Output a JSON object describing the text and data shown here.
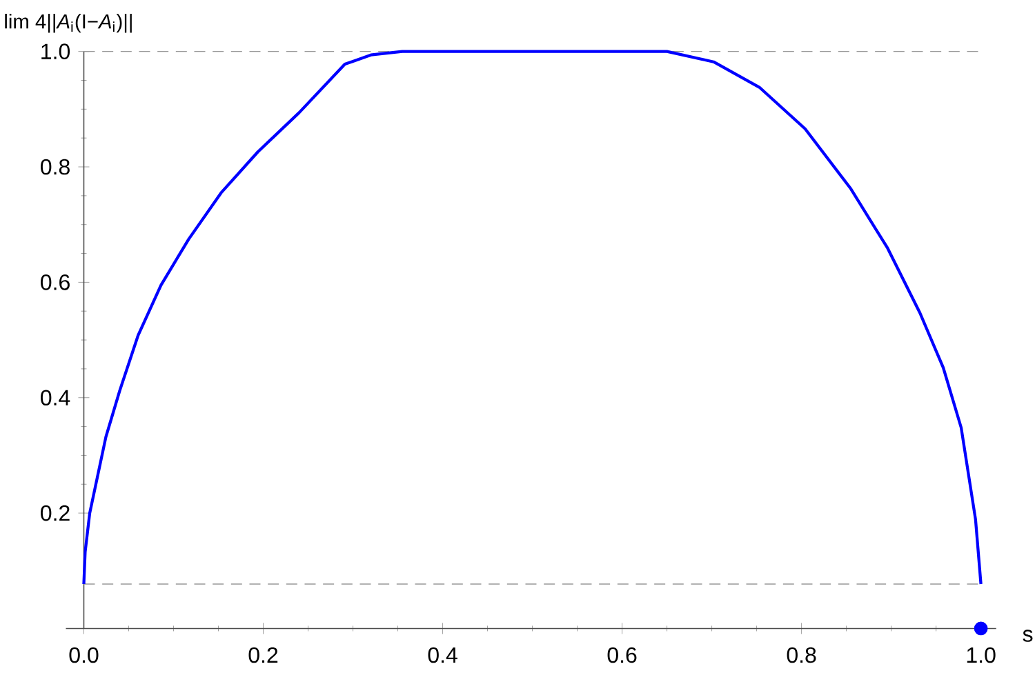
{
  "chart_data": {
    "type": "line",
    "xlabel": "s",
    "ylabel": "lim 4||*A*$_{i}$(I−*A*$_{i}$)||",
    "xlim": [
      -0.02,
      1.017
    ],
    "ylim": [
      0,
      1
    ],
    "xticks": [
      {
        "value": 0,
        "label": "0.0"
      },
      0.2,
      0.4,
      0.6,
      0.8,
      {
        "value": 1,
        "label": "1.0"
      }
    ],
    "yticks": [
      0.2,
      0.4,
      0.6,
      0.8,
      {
        "value": 1,
        "label": "1.0"
      }
    ],
    "ref_lines": [
      {
        "axis": "y",
        "value": 1,
        "color": "#999999",
        "line_style": "dashed"
      },
      {
        "axis": "y",
        "value": 0.077,
        "color": "#999999",
        "line_style": "dashed"
      }
    ],
    "series": [
      {
        "color": "#0000ff",
        "marker": "none",
        "x": [
          0,
          0.0015,
          0.0066,
          0.0246,
          0.04,
          0.0605,
          0.086,
          0.117,
          0.153,
          0.194,
          0.24,
          0.291,
          0.32,
          0.355,
          0.5,
          0.65,
          0.702,
          0.753,
          0.804,
          0.855,
          0.896,
          0.932,
          0.958,
          0.978,
          0.994,
          1
        ],
        "values": [
          0.077,
          0.133,
          0.2,
          0.332,
          0.412,
          0.508,
          0.595,
          0.675,
          0.755,
          0.826,
          0.894,
          0.978,
          0.994,
          1,
          1,
          1,
          0.982,
          0.938,
          0.866,
          0.762,
          0.659,
          0.547,
          0.452,
          0.348,
          0.189,
          0.077
        ]
      },
      {
        "type": "scatter",
        "color": "#0000ff",
        "marker": "circle",
        "x": [
          1
        ],
        "values": [
          0
        ]
      }
    ]
  }
}
